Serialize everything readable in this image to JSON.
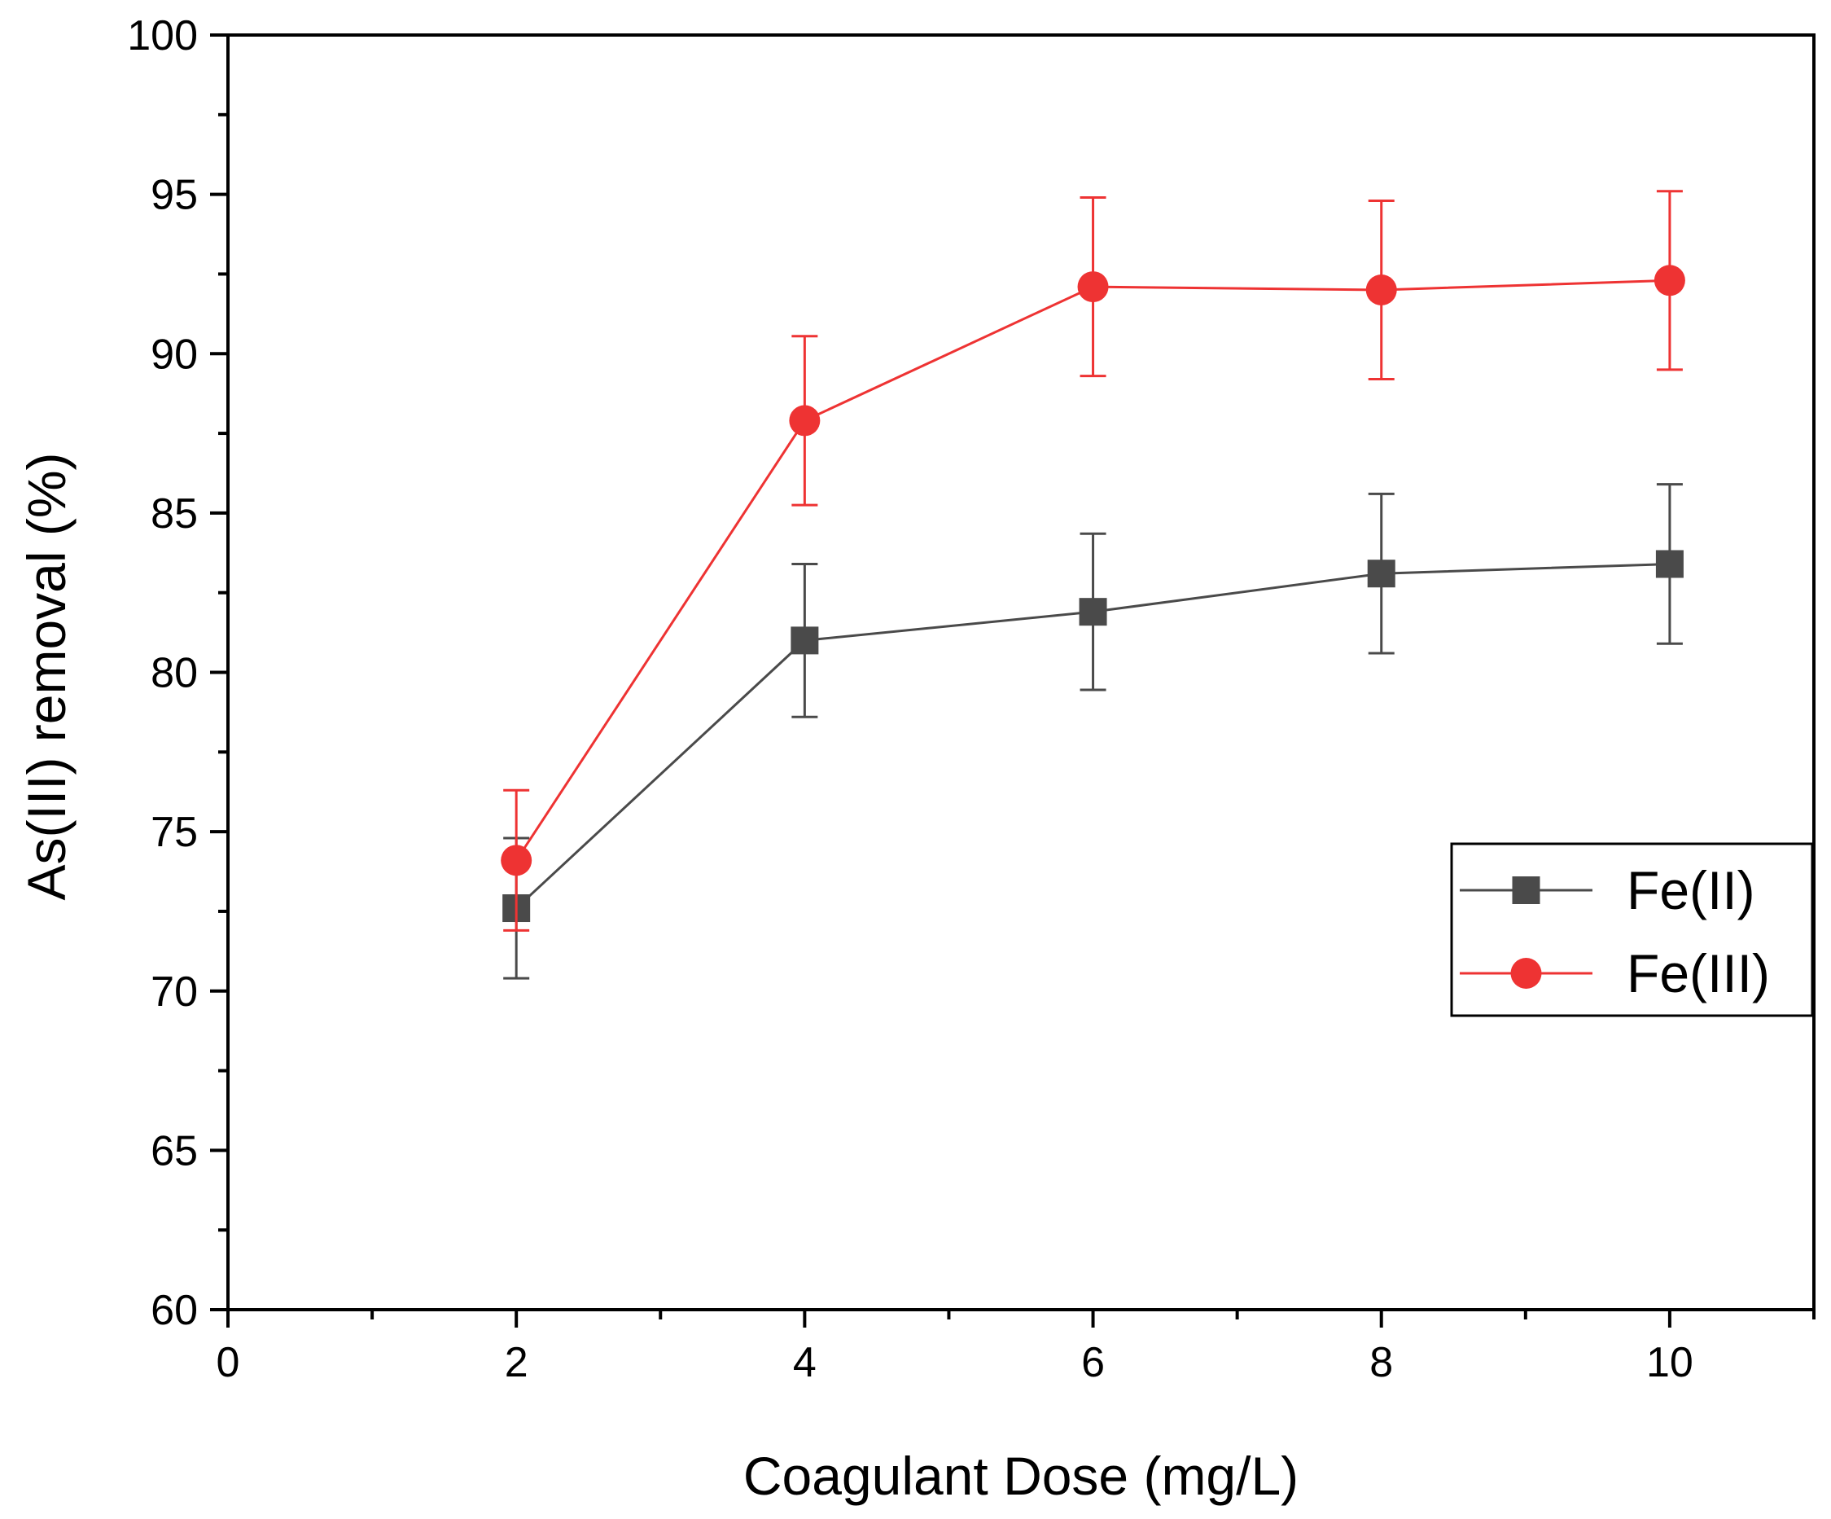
{
  "chart_data": {
    "type": "line",
    "title": "",
    "xlabel": "Coagulant Dose (mg/L)",
    "ylabel": "As(III) removal (%)",
    "xlim": [
      0,
      11
    ],
    "ylim": [
      60,
      100
    ],
    "x_ticks": [
      0,
      2,
      4,
      6,
      8,
      10
    ],
    "x_tick_labels": [
      "0",
      "2",
      "4",
      "6",
      "8",
      "10"
    ],
    "x_minor_step": 1,
    "y_ticks": [
      60,
      65,
      70,
      75,
      80,
      85,
      90,
      95,
      100
    ],
    "y_tick_labels": [
      "60",
      "65",
      "70",
      "75",
      "80",
      "85",
      "90",
      "95",
      "100"
    ],
    "y_minor_step": 2.5,
    "grid": false,
    "legend_position": "right-middle",
    "series": [
      {
        "name": "Fe(II)",
        "marker": "square",
        "color": "#4a4a4a",
        "x": [
          2,
          4,
          6,
          8,
          10
        ],
        "y": [
          72.6,
          81.0,
          81.9,
          83.1,
          83.4
        ],
        "error": [
          2.2,
          2.4,
          2.45,
          2.5,
          2.5
        ]
      },
      {
        "name": "Fe(III)",
        "marker": "circle",
        "color": "#ee3333",
        "x": [
          2,
          4,
          6,
          8,
          10
        ],
        "y": [
          74.1,
          87.9,
          92.1,
          92.0,
          92.3
        ],
        "error": [
          2.2,
          2.65,
          2.8,
          2.8,
          2.8
        ]
      }
    ]
  }
}
